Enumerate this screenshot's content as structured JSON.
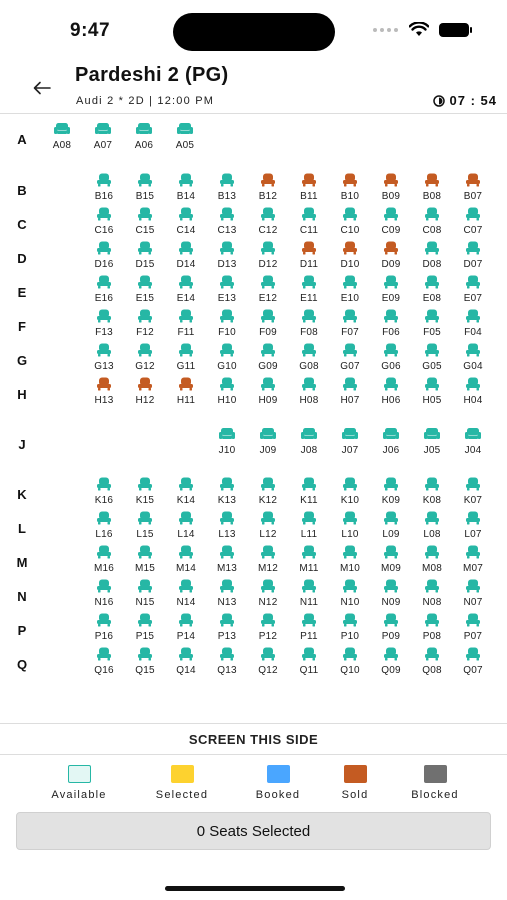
{
  "status_bar": {
    "time": "9:47"
  },
  "header": {
    "title": "Pardeshi 2 (PG)",
    "subtitle": "Audi 2 * 2D | 12:00 PM",
    "timer": "07 : 54"
  },
  "colors": {
    "available": "#26b7a5",
    "sold": "#c45b22",
    "selected": "#fdd22f",
    "booked": "#4aa6ff",
    "blocked": "#707070",
    "available_swatch": "#e3f7f4"
  },
  "rows": [
    {
      "label": "A",
      "seats": [
        {
          "id": "A08",
          "status": "available",
          "type": "premium"
        },
        {
          "id": "A07",
          "status": "available",
          "type": "premium"
        },
        {
          "id": "A06",
          "status": "available",
          "type": "premium"
        },
        {
          "id": "A05",
          "status": "available",
          "type": "premium"
        }
      ]
    },
    {
      "label": "B",
      "seats": [
        {
          "id": "B16",
          "status": "available"
        },
        {
          "id": "B15",
          "status": "available"
        },
        {
          "id": "B14",
          "status": "available"
        },
        {
          "id": "B13",
          "status": "available"
        },
        {
          "id": "B12",
          "status": "sold"
        },
        {
          "id": "B11",
          "status": "sold"
        },
        {
          "id": "B10",
          "status": "sold"
        },
        {
          "id": "B09",
          "status": "sold"
        },
        {
          "id": "B08",
          "status": "sold"
        },
        {
          "id": "B07",
          "status": "sold"
        }
      ]
    },
    {
      "label": "C",
      "seats": [
        {
          "id": "C16",
          "status": "available"
        },
        {
          "id": "C15",
          "status": "available"
        },
        {
          "id": "C14",
          "status": "available"
        },
        {
          "id": "C13",
          "status": "available"
        },
        {
          "id": "C12",
          "status": "available"
        },
        {
          "id": "C11",
          "status": "available"
        },
        {
          "id": "C10",
          "status": "available"
        },
        {
          "id": "C09",
          "status": "available"
        },
        {
          "id": "C08",
          "status": "available"
        },
        {
          "id": "C07",
          "status": "available"
        }
      ]
    },
    {
      "label": "D",
      "seats": [
        {
          "id": "D16",
          "status": "available"
        },
        {
          "id": "D15",
          "status": "available"
        },
        {
          "id": "D14",
          "status": "available"
        },
        {
          "id": "D13",
          "status": "available"
        },
        {
          "id": "D12",
          "status": "available"
        },
        {
          "id": "D11",
          "status": "sold"
        },
        {
          "id": "D10",
          "status": "sold"
        },
        {
          "id": "D09",
          "status": "sold"
        },
        {
          "id": "D08",
          "status": "available"
        },
        {
          "id": "D07",
          "status": "available"
        }
      ]
    },
    {
      "label": "E",
      "seats": [
        {
          "id": "E16",
          "status": "available"
        },
        {
          "id": "E15",
          "status": "available"
        },
        {
          "id": "E14",
          "status": "available"
        },
        {
          "id": "E13",
          "status": "available"
        },
        {
          "id": "E12",
          "status": "available"
        },
        {
          "id": "E11",
          "status": "available"
        },
        {
          "id": "E10",
          "status": "available"
        },
        {
          "id": "E09",
          "status": "available"
        },
        {
          "id": "E08",
          "status": "available"
        },
        {
          "id": "E07",
          "status": "available"
        }
      ]
    },
    {
      "label": "F",
      "seats": [
        {
          "id": "F13",
          "status": "available"
        },
        {
          "id": "F12",
          "status": "available"
        },
        {
          "id": "F11",
          "status": "available"
        },
        {
          "id": "F10",
          "status": "available"
        },
        {
          "id": "F09",
          "status": "available"
        },
        {
          "id": "F08",
          "status": "available"
        },
        {
          "id": "F07",
          "status": "available"
        },
        {
          "id": "F06",
          "status": "available"
        },
        {
          "id": "F05",
          "status": "available"
        },
        {
          "id": "F04",
          "status": "available"
        }
      ]
    },
    {
      "label": "G",
      "seats": [
        {
          "id": "G13",
          "status": "available"
        },
        {
          "id": "G12",
          "status": "available"
        },
        {
          "id": "G11",
          "status": "available"
        },
        {
          "id": "G10",
          "status": "available"
        },
        {
          "id": "G09",
          "status": "available"
        },
        {
          "id": "G08",
          "status": "available"
        },
        {
          "id": "G07",
          "status": "available"
        },
        {
          "id": "G06",
          "status": "available"
        },
        {
          "id": "G05",
          "status": "available"
        },
        {
          "id": "G04",
          "status": "available"
        }
      ]
    },
    {
      "label": "H",
      "seats": [
        {
          "id": "H13",
          "status": "sold"
        },
        {
          "id": "H12",
          "status": "sold"
        },
        {
          "id": "H11",
          "status": "sold"
        },
        {
          "id": "H10",
          "status": "available"
        },
        {
          "id": "H09",
          "status": "available"
        },
        {
          "id": "H08",
          "status": "available"
        },
        {
          "id": "H07",
          "status": "available"
        },
        {
          "id": "H06",
          "status": "available"
        },
        {
          "id": "H05",
          "status": "available"
        },
        {
          "id": "H04",
          "status": "available"
        }
      ]
    },
    {
      "label": "J",
      "seats": [
        {
          "id": "J10",
          "status": "available",
          "type": "premium"
        },
        {
          "id": "J09",
          "status": "available",
          "type": "premium"
        },
        {
          "id": "J08",
          "status": "available",
          "type": "premium"
        },
        {
          "id": "J07",
          "status": "available",
          "type": "premium"
        },
        {
          "id": "J06",
          "status": "available",
          "type": "premium"
        },
        {
          "id": "J05",
          "status": "available",
          "type": "premium"
        },
        {
          "id": "J04",
          "status": "available",
          "type": "premium"
        }
      ]
    },
    {
      "label": "K",
      "seats": [
        {
          "id": "K16",
          "status": "available"
        },
        {
          "id": "K15",
          "status": "available"
        },
        {
          "id": "K14",
          "status": "available"
        },
        {
          "id": "K13",
          "status": "available"
        },
        {
          "id": "K12",
          "status": "available"
        },
        {
          "id": "K11",
          "status": "available"
        },
        {
          "id": "K10",
          "status": "available"
        },
        {
          "id": "K09",
          "status": "available"
        },
        {
          "id": "K08",
          "status": "available"
        },
        {
          "id": "K07",
          "status": "available"
        }
      ]
    },
    {
      "label": "L",
      "seats": [
        {
          "id": "L16",
          "status": "available"
        },
        {
          "id": "L15",
          "status": "available"
        },
        {
          "id": "L14",
          "status": "available"
        },
        {
          "id": "L13",
          "status": "available"
        },
        {
          "id": "L12",
          "status": "available"
        },
        {
          "id": "L11",
          "status": "available"
        },
        {
          "id": "L10",
          "status": "available"
        },
        {
          "id": "L09",
          "status": "available"
        },
        {
          "id": "L08",
          "status": "available"
        },
        {
          "id": "L07",
          "status": "available"
        }
      ]
    },
    {
      "label": "M",
      "seats": [
        {
          "id": "M16",
          "status": "available"
        },
        {
          "id": "M15",
          "status": "available"
        },
        {
          "id": "M14",
          "status": "available"
        },
        {
          "id": "M13",
          "status": "available"
        },
        {
          "id": "M12",
          "status": "available"
        },
        {
          "id": "M11",
          "status": "available"
        },
        {
          "id": "M10",
          "status": "available"
        },
        {
          "id": "M09",
          "status": "available"
        },
        {
          "id": "M08",
          "status": "available"
        },
        {
          "id": "M07",
          "status": "available"
        }
      ]
    },
    {
      "label": "N",
      "seats": [
        {
          "id": "N16",
          "status": "available"
        },
        {
          "id": "N15",
          "status": "available"
        },
        {
          "id": "N14",
          "status": "available"
        },
        {
          "id": "N13",
          "status": "available"
        },
        {
          "id": "N12",
          "status": "available"
        },
        {
          "id": "N11",
          "status": "available"
        },
        {
          "id": "N10",
          "status": "available"
        },
        {
          "id": "N09",
          "status": "available"
        },
        {
          "id": "N08",
          "status": "available"
        },
        {
          "id": "N07",
          "status": "available"
        }
      ]
    },
    {
      "label": "P",
      "seats": [
        {
          "id": "P16",
          "status": "available"
        },
        {
          "id": "P15",
          "status": "available"
        },
        {
          "id": "P14",
          "status": "available"
        },
        {
          "id": "P13",
          "status": "available"
        },
        {
          "id": "P12",
          "status": "available"
        },
        {
          "id": "P11",
          "status": "available"
        },
        {
          "id": "P10",
          "status": "available"
        },
        {
          "id": "P09",
          "status": "available"
        },
        {
          "id": "P08",
          "status": "available"
        },
        {
          "id": "P07",
          "status": "available"
        }
      ]
    },
    {
      "label": "Q",
      "seats": [
        {
          "id": "Q16",
          "status": "available"
        },
        {
          "id": "Q15",
          "status": "available"
        },
        {
          "id": "Q14",
          "status": "available"
        },
        {
          "id": "Q13",
          "status": "available"
        },
        {
          "id": "Q12",
          "status": "available"
        },
        {
          "id": "Q11",
          "status": "available"
        },
        {
          "id": "Q10",
          "status": "available"
        },
        {
          "id": "Q09",
          "status": "available"
        },
        {
          "id": "Q08",
          "status": "available"
        },
        {
          "id": "Q07",
          "status": "available"
        }
      ]
    }
  ],
  "screen_label": "SCREEN THIS SIDE",
  "legend": [
    {
      "key": "available",
      "label": "Available"
    },
    {
      "key": "selected",
      "label": "Selected"
    },
    {
      "key": "booked",
      "label": "Booked"
    },
    {
      "key": "sold",
      "label": "Sold"
    },
    {
      "key": "blocked",
      "label": "Blocked"
    }
  ],
  "footer": {
    "selected_label": "0 Seats Selected"
  }
}
